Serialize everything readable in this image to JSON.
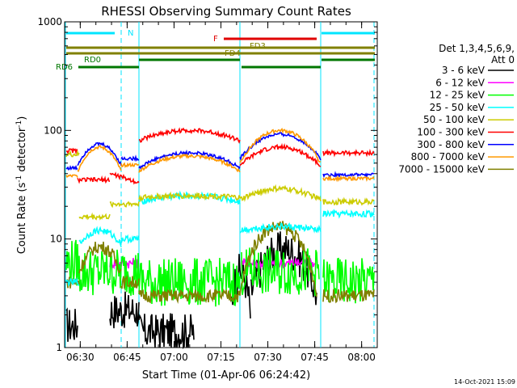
{
  "chart_data": {
    "type": "line",
    "title": "RHESSI Observing Summary Count Rates",
    "xlabel": "Start Time (01-Apr-06 06:24:42)",
    "ylabel_main": "Count Rate (s",
    "ylabel_sup": "-1",
    "ylabel_rest": " detector",
    "ylabel_sup2": "-1",
    "ylabel_end": ")",
    "yscale": "log",
    "ylim": [
      1,
      1000
    ],
    "xlim_min": [
      385,
      485
    ],
    "y_ticks": [
      "1",
      "10",
      "100",
      "1000"
    ],
    "x_ticks": [
      {
        "m": 390,
        "label": "06:30"
      },
      {
        "m": 405,
        "label": "06:45"
      },
      {
        "m": 420,
        "label": "07:00"
      },
      {
        "m": 435,
        "label": "07:15"
      },
      {
        "m": 450,
        "label": "07:30"
      },
      {
        "m": 465,
        "label": "07:45"
      },
      {
        "m": 480,
        "label": "08:00"
      }
    ],
    "legend_header": [
      "Det 1,3,4,5,6,9,",
      "Att 0"
    ],
    "series": [
      {
        "name": "3 - 6 keV",
        "color": "#000000"
      },
      {
        "name": "6 - 12 keV",
        "color": "#ff00ff"
      },
      {
        "name": "12 - 25 keV",
        "color": "#00ff00"
      },
      {
        "name": "25 - 50 keV",
        "color": "#00ffff"
      },
      {
        "name": "50 - 100 keV",
        "color": "#cccc00"
      },
      {
        "name": "100 - 300 keV",
        "color": "#ff0000"
      },
      {
        "name": "300 - 800 keV",
        "color": "#0000ff"
      },
      {
        "name": "800 - 7000 keV",
        "color": "#ff9900"
      },
      {
        "name": "7000 - 15000 keV",
        "color": "#808000"
      }
    ],
    "flags": {
      "N": {
        "label": "N",
        "color": "#00e5ff"
      },
      "F": {
        "label": "F",
        "color": "#e00000"
      },
      "FD3": {
        "label": "FD3",
        "color": "#808000"
      },
      "FD4": {
        "label": "FD4",
        "color": "#808000"
      },
      "RD0": {
        "label": "RD0",
        "color": "#007700"
      },
      "RD6": {
        "label": "RD6",
        "color": "#007700"
      }
    },
    "footer_date": "14-Oct-2021 15:09"
  }
}
